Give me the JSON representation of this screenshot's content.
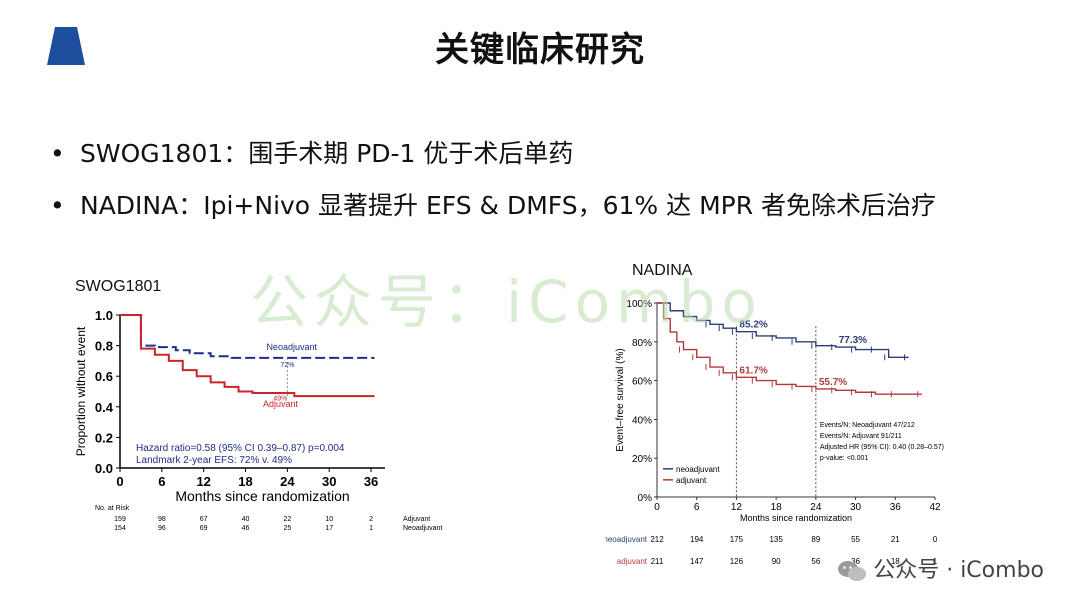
{
  "slide": {
    "title": "关键临床研究",
    "bullets": [
      "SWOG1801：围手术期 PD-1 优于术后单药",
      "NADINA：Ipi+Nivo 显著提升 EFS & DMFS，61% 达 MPR 者免除术后治疗"
    ],
    "watermark": "公众号：iCombo",
    "footer_mark": "公众号 · iCombo",
    "colors": {
      "navy": "#1f2d8a",
      "red": "#c8262a",
      "logo": "#1d4e9e"
    }
  },
  "chart_data": [
    {
      "type": "line",
      "caption": "SWOG1801",
      "xlabel": "Months since randomization",
      "ylabel": "Proportion without event",
      "xlim": [
        0,
        38
      ],
      "ylim": [
        0,
        1
      ],
      "xticks": [
        0,
        6,
        12,
        18,
        24,
        30,
        36
      ],
      "yticks": [
        "0.0",
        "0.2",
        "0.4",
        "0.6",
        "0.8",
        "1.0"
      ],
      "series": [
        {
          "name": "Neoadjuvant",
          "color": "#1f2d8a",
          "dashed": true,
          "points": [
            [
              0,
              1
            ],
            [
              3,
              1
            ],
            [
              3,
              0.8
            ],
            [
              5,
              0.79
            ],
            [
              8,
              0.77
            ],
            [
              10,
              0.75
            ],
            [
              13,
              0.73
            ],
            [
              16,
              0.72
            ],
            [
              20,
              0.72
            ],
            [
              24,
              0.72
            ],
            [
              30,
              0.72
            ],
            [
              36.5,
              0.72
            ]
          ]
        },
        {
          "name": "Adjuvant",
          "color": "#c8262a",
          "dashed": false,
          "points": [
            [
              0,
              1
            ],
            [
              3,
              1
            ],
            [
              3,
              0.78
            ],
            [
              5,
              0.74
            ],
            [
              7,
              0.7
            ],
            [
              9,
              0.64
            ],
            [
              11,
              0.6
            ],
            [
              13,
              0.56
            ],
            [
              15,
              0.53
            ],
            [
              17,
              0.5
            ],
            [
              19,
              0.49
            ],
            [
              22,
              0.49
            ],
            [
              24,
              0.49
            ],
            [
              25,
              0.47
            ],
            [
              30,
              0.47
            ],
            [
              36.5,
              0.47
            ]
          ]
        }
      ],
      "annotations": [
        {
          "text": "72%",
          "x": 24,
          "y": 0.66,
          "color": "#1f2d8a"
        },
        {
          "text": "49%",
          "x": 23,
          "y": 0.44,
          "color": "#c8262a"
        }
      ],
      "stats": [
        "Hazard ratio=0.58 (95% CI 0.39–0.87) p=0.004",
        "Landmark 2-year EFS: 72% v. 49%"
      ],
      "risk_table": {
        "header": "No. at Risk",
        "rows": [
          {
            "label": "Adjuvant",
            "values": [
              "159",
              "98",
              "67",
              "40",
              "22",
              "10",
              "2"
            ]
          },
          {
            "label": "Neoadjuvant",
            "values": [
              "154",
              "96",
              "69",
              "46",
              "25",
              "17",
              "1"
            ]
          }
        ]
      }
    },
    {
      "type": "line",
      "caption": "NADINA",
      "xlabel": "Months since randomization",
      "ylabel": "Event–free survival (%)",
      "xlim": [
        0,
        42
      ],
      "ylim": [
        0,
        100
      ],
      "xticks": [
        0,
        6,
        12,
        18,
        24,
        30,
        36,
        42
      ],
      "yticks": [
        "0%",
        "20%",
        "40%",
        "60%",
        "80%",
        "100%"
      ],
      "series": [
        {
          "name": "neoadjuvant",
          "color": "#2c3e78",
          "points": [
            [
              0,
              100
            ],
            [
              2,
              96
            ],
            [
              4,
              93
            ],
            [
              6,
              91
            ],
            [
              8,
              89
            ],
            [
              10,
              87
            ],
            [
              12,
              85.2
            ],
            [
              15,
              83
            ],
            [
              18,
              82
            ],
            [
              21,
              80
            ],
            [
              24,
              78
            ],
            [
              27,
              77.3
            ],
            [
              30,
              76
            ],
            [
              33,
              76
            ],
            [
              35,
              72
            ],
            [
              38,
              72
            ]
          ]
        },
        {
          "name": "adjuvant",
          "color": "#b23a3a",
          "points": [
            [
              0,
              100
            ],
            [
              1,
              92
            ],
            [
              2,
              85
            ],
            [
              3,
              80
            ],
            [
              4,
              76
            ],
            [
              6,
              72
            ],
            [
              8,
              67
            ],
            [
              10,
              64
            ],
            [
              12,
              61.7
            ],
            [
              15,
              60
            ],
            [
              18,
              58
            ],
            [
              21,
              57
            ],
            [
              24,
              55.7
            ],
            [
              27,
              55
            ],
            [
              30,
              54
            ],
            [
              33,
              53
            ],
            [
              36,
              53
            ],
            [
              40,
              53
            ]
          ]
        }
      ],
      "annotations": [
        {
          "text": "85.2%",
          "x": 12,
          "y": 85.2,
          "color": "#2c3e78"
        },
        {
          "text": "77.3%",
          "x": 27,
          "y": 77.3,
          "color": "#2c3e78"
        },
        {
          "text": "61.7%",
          "x": 12,
          "y": 61.7,
          "color": "#b23a3a"
        },
        {
          "text": "55.7%",
          "x": 24,
          "y": 55.7,
          "color": "#b23a3a"
        }
      ],
      "stats": [
        "Events/N: Neoadjuvant 47/212",
        "Events/N: Adjuvant 91/211",
        "Adjusted HR (95% CI): 0.40 (0.28–0.57)",
        "p-value: <0.001"
      ],
      "risk_table": {
        "rows": [
          {
            "label": "neoadjuvant",
            "values": [
              "212",
              "194",
              "175",
              "135",
              "89",
              "55",
              "21",
              "0"
            ]
          },
          {
            "label": "adjuvant",
            "values": [
              "211",
              "147",
              "126",
              "90",
              "56",
              "36",
              "18",
              "1"
            ]
          }
        ]
      }
    }
  ]
}
